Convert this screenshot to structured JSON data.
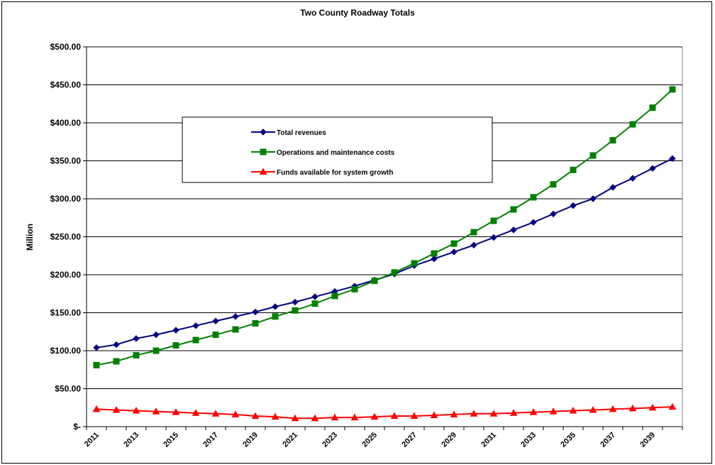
{
  "chart_data": {
    "type": "line",
    "title": "Two County Roadway Totals",
    "ylabel": "Million",
    "xlabel": "",
    "ylim": [
      0,
      500
    ],
    "y_ticks": [
      0,
      50,
      100,
      150,
      200,
      250,
      300,
      350,
      400,
      450,
      500
    ],
    "y_tick_labels": [
      "$-",
      "$50.00",
      "$100.00",
      "$150.00",
      "$200.00",
      "$250.00",
      "$300.00",
      "$350.00",
      "$400.00",
      "$450.00",
      "$500.00"
    ],
    "x": [
      2011,
      2012,
      2013,
      2014,
      2015,
      2016,
      2017,
      2018,
      2019,
      2020,
      2021,
      2022,
      2023,
      2024,
      2025,
      2026,
      2027,
      2028,
      2029,
      2030,
      2031,
      2032,
      2033,
      2034,
      2035,
      2036,
      2037,
      2038,
      2039,
      2040
    ],
    "x_tick_labels": [
      "2011",
      "2013",
      "2015",
      "2017",
      "2019",
      "2021",
      "2023",
      "2025",
      "2027",
      "2029",
      "2031",
      "2033",
      "2035",
      "2037",
      "2039"
    ],
    "grid": "horizontal",
    "legend_position": "upper-left inside plot",
    "series": [
      {
        "name": "Total revenues",
        "color": "#000080",
        "marker": "diamond",
        "values": [
          104,
          108,
          116,
          121,
          127,
          133,
          139,
          145,
          151,
          158,
          164,
          171,
          178,
          185,
          193,
          201,
          212,
          221,
          230,
          239,
          249,
          259,
          269,
          280,
          291,
          300,
          315,
          327,
          340,
          353
        ]
      },
      {
        "name": "Operations and maintenance costs",
        "color": "#008000",
        "marker": "square",
        "values": [
          81,
          86,
          94,
          100,
          107,
          114,
          121,
          128,
          136,
          145,
          153,
          162,
          172,
          181,
          192,
          203,
          215,
          228,
          241,
          256,
          271,
          286,
          302,
          319,
          338,
          357,
          377,
          398,
          420,
          444
        ]
      },
      {
        "name": "Funds available for system growth",
        "color": "#ff0000",
        "marker": "triangle",
        "values": [
          23,
          22,
          21,
          20,
          19,
          18,
          17,
          16,
          14,
          13,
          11,
          11,
          12,
          12,
          13,
          14,
          14,
          15,
          16,
          17,
          17,
          18,
          19,
          20,
          21,
          22,
          23,
          24,
          25,
          26
        ]
      }
    ]
  },
  "colors": {
    "plot_background": "#ffffff",
    "gridline": "#000000"
  }
}
